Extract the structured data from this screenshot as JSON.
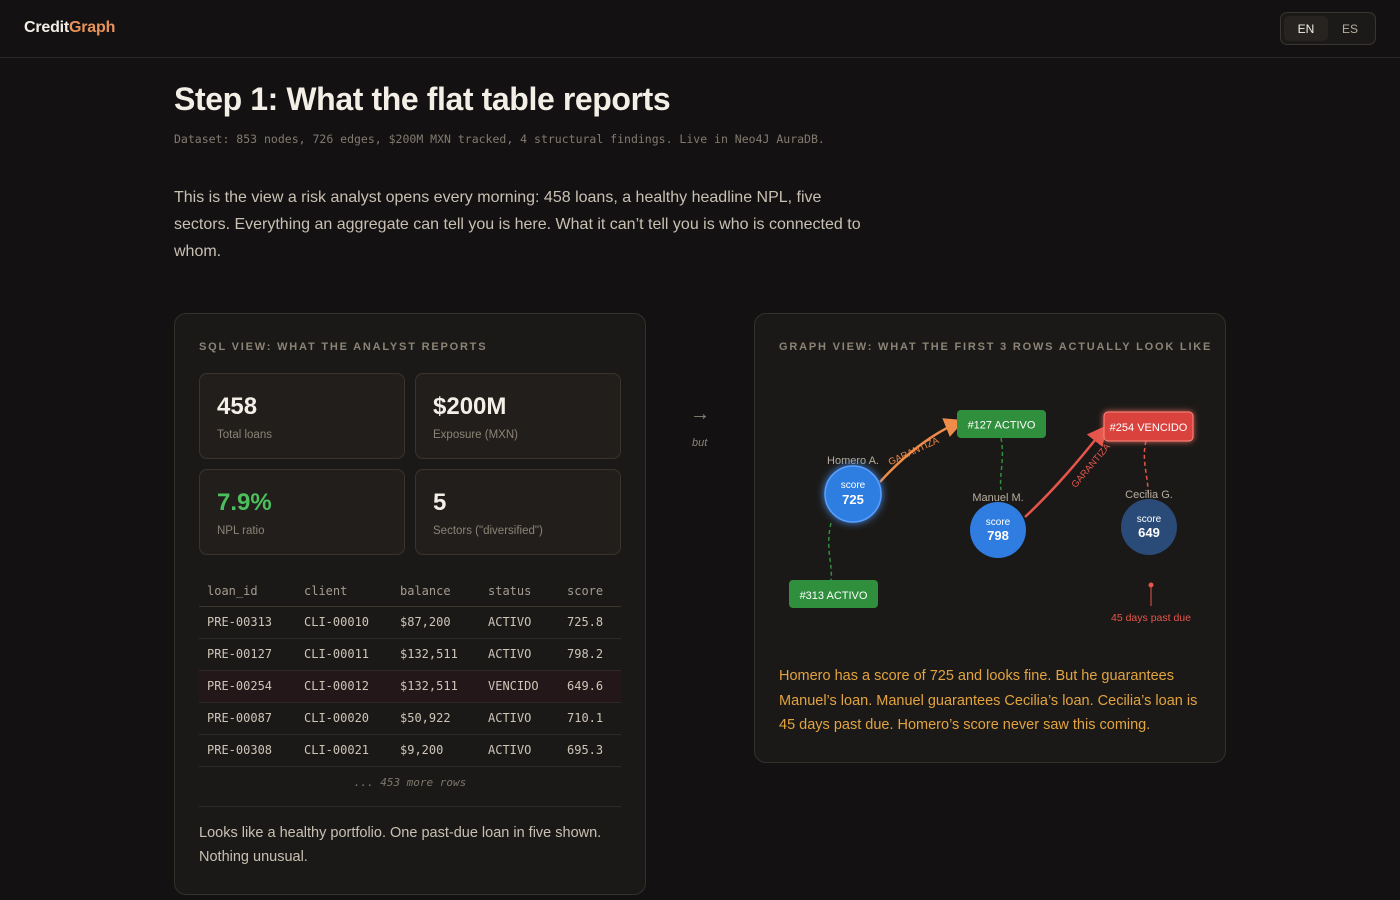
{
  "header": {
    "logo_part1": "Credit",
    "logo_part2": "Graph",
    "lang_options": [
      "EN",
      "ES"
    ]
  },
  "page": {
    "title": "Step 1: What the flat table reports",
    "meta": "Dataset: 853 nodes, 726 edges, $200M MXN tracked, 4 structural findings. Live in Neo4J AuraDB.",
    "intro": "This is the view a risk analyst opens every morning: 458 loans, a healthy headline NPL, five sectors. Everything an aggregate can tell you is here. What it can’t tell you is who is connected to whom."
  },
  "sql_view": {
    "label": "SQL VIEW: WHAT THE ANALYST REPORTS",
    "stats": [
      {
        "value": "458",
        "label": "Total loans"
      },
      {
        "value": "$200M",
        "label": "Exposure (MXN)"
      },
      {
        "value": "7.9%",
        "label": "NPL ratio"
      },
      {
        "value": "5",
        "label": "Sectors (\"diversified\")"
      }
    ],
    "columns": [
      "loan_id",
      "client",
      "balance",
      "status",
      "score"
    ],
    "rows": [
      [
        "PRE-00313",
        "CLI-00010",
        "$87,200",
        "ACTIVO",
        "725.8"
      ],
      [
        "PRE-00127",
        "CLI-00011",
        "$132,511",
        "ACTIVO",
        "798.2"
      ],
      [
        "PRE-00254",
        "CLI-00012",
        "$132,511",
        "VENCIDO",
        "649.6"
      ],
      [
        "PRE-00087",
        "CLI-00020",
        "$50,922",
        "ACTIVO",
        "710.1"
      ],
      [
        "PRE-00308",
        "CLI-00021",
        "$9,200",
        "ACTIVO",
        "695.3"
      ]
    ],
    "more_rows": "... 453 more rows",
    "note": "Looks like a healthy portfolio. One past-due loan in five shown. Nothing unusual."
  },
  "connector": {
    "arrow": "→",
    "label": "but"
  },
  "graph_view": {
    "label": "GRAPH VIEW: WHAT THE FIRST 3 ROWS ACTUALLY LOOK LIKE",
    "people": [
      {
        "name": "Homero A.",
        "score_label": "score",
        "score": "725"
      },
      {
        "name": "Manuel M.",
        "score_label": "score",
        "score": "798"
      },
      {
        "name": "Cecilia G.",
        "score_label": "score",
        "score": "649"
      }
    ],
    "loans": [
      {
        "label": "#127 ACTIVO",
        "status": "activo"
      },
      {
        "label": "#254 VENCIDO",
        "status": "vencido"
      },
      {
        "label": "#313 ACTIVO",
        "status": "activo"
      }
    ],
    "edge_label": "GARANTIZA",
    "past_due_label": "45 days past due",
    "colors": {
      "activo": "#2f8f3c",
      "vencido": "#d9423c",
      "guarantee_1": "#ef8c4a",
      "guarantee_2": "#e5554c",
      "person": "#2f7de0",
      "person_dark": "#2a4a78"
    },
    "note": "Homero has a score of 725 and looks fine. But he guarantees Manuel’s loan. Manuel guarantees Cecilia’s loan. Cecilia’s loan is 45 days past due. Homero’s score never saw this coming."
  }
}
